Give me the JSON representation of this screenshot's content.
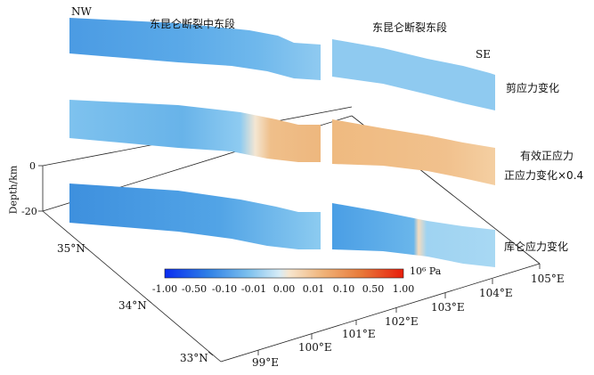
{
  "labels": {
    "nw": "NW",
    "se": "SE",
    "segment_mid_east": "东昆仑断裂中东段",
    "segment_east": "东昆仑断裂东段",
    "panel_shear": "剪应力变化",
    "panel_normal_line1": "有效正应力",
    "panel_normal_line2": "正应力变化×0.4",
    "panel_coulomb": "库仑应力变化",
    "depth_axis": "Depth/km",
    "depth_0": "0",
    "depth_20": "-20",
    "colorbar_unit": "10⁶ Pa"
  },
  "lat_ticks": [
    "35°N",
    "34°N",
    "33°N"
  ],
  "lon_ticks": [
    "99°E",
    "100°E",
    "101°E",
    "102°E",
    "103°E",
    "104°E",
    "105°E"
  ],
  "colorbar_ticks": [
    "-1.00",
    "-0.50",
    "-0.10",
    "-0.01",
    "0.00",
    "0.01",
    "0.10",
    "0.50",
    "1.00"
  ],
  "colors": {
    "blue_deep": "#0a3cff",
    "blue_mid": "#4aa0e6",
    "blue_light": "#9fd2f2",
    "peach": "#f2c08a",
    "orange": "#e89a52",
    "red": "#e8230c"
  }
}
